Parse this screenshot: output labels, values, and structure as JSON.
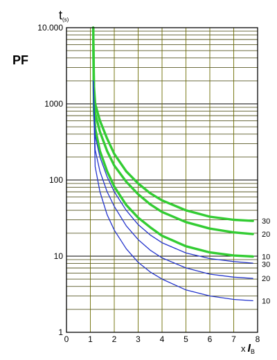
{
  "chart_data": {
    "type": "line",
    "title": "PF",
    "ylabel": "t",
    "ylabel_sub": "(s)",
    "xlabel_prefix": "x",
    "xlabel_var": "I",
    "xlabel_sub": "B",
    "y_scale": "log",
    "ylim": [
      1,
      10000
    ],
    "xlim": [
      0,
      8
    ],
    "x_ticks": [
      "0",
      "1",
      "2",
      "3",
      "4",
      "5",
      "6",
      "7",
      "8"
    ],
    "y_ticks": [
      {
        "value": 1,
        "label": "1"
      },
      {
        "value": 10,
        "label": "10"
      },
      {
        "value": 100,
        "label": "100"
      },
      {
        "value": 1000,
        "label": "1000"
      },
      {
        "value": 10000,
        "label": "10.000"
      }
    ],
    "grid": true,
    "series": [
      {
        "label": "30",
        "color": "#33cc33",
        "group": "green",
        "points": [
          [
            1.12,
            10000
          ],
          [
            1.15,
            1700
          ],
          [
            1.2,
            1000
          ],
          [
            1.4,
            600
          ],
          [
            1.7,
            350
          ],
          [
            2,
            220
          ],
          [
            2.5,
            130
          ],
          [
            3,
            90
          ],
          [
            3.5,
            67
          ],
          [
            4,
            54
          ],
          [
            5,
            40
          ],
          [
            6,
            33
          ],
          [
            7,
            30
          ],
          [
            7.8,
            29
          ]
        ]
      },
      {
        "label": "20",
        "color": "#33cc33",
        "group": "green",
        "points": [
          [
            1.12,
            10000
          ],
          [
            1.15,
            1200
          ],
          [
            1.2,
            750
          ],
          [
            1.4,
            430
          ],
          [
            1.7,
            240
          ],
          [
            2,
            155
          ],
          [
            2.5,
            95
          ],
          [
            3,
            65
          ],
          [
            3.5,
            48
          ],
          [
            4,
            38
          ],
          [
            5,
            28
          ],
          [
            6,
            23
          ],
          [
            7,
            20.5
          ],
          [
            7.8,
            19.5
          ]
        ]
      },
      {
        "label": "10",
        "color": "#33cc33",
        "group": "green",
        "points": [
          [
            1.12,
            10000
          ],
          [
            1.15,
            800
          ],
          [
            1.2,
            480
          ],
          [
            1.4,
            240
          ],
          [
            1.7,
            130
          ],
          [
            2,
            82
          ],
          [
            2.5,
            47
          ],
          [
            3,
            32
          ],
          [
            3.5,
            24
          ],
          [
            4,
            18.5
          ],
          [
            5,
            13.5
          ],
          [
            6,
            11.2
          ],
          [
            7,
            10.2
          ],
          [
            7.8,
            9.9
          ]
        ]
      },
      {
        "label": "30",
        "color": "#2233cc",
        "group": "blue",
        "points": [
          [
            1.12,
            2000
          ],
          [
            1.2,
            380
          ],
          [
            1.4,
            200
          ],
          [
            1.7,
            110
          ],
          [
            2,
            70
          ],
          [
            2.5,
            40
          ],
          [
            3,
            26
          ],
          [
            3.5,
            19
          ],
          [
            4,
            15
          ],
          [
            5,
            11
          ],
          [
            6,
            9.3
          ],
          [
            7,
            8.5
          ],
          [
            7.8,
            8.1
          ]
        ]
      },
      {
        "label": "20",
        "color": "#2233cc",
        "group": "blue",
        "points": [
          [
            1.12,
            2000
          ],
          [
            1.2,
            250
          ],
          [
            1.4,
            130
          ],
          [
            1.7,
            70
          ],
          [
            2,
            45
          ],
          [
            2.5,
            25
          ],
          [
            3,
            16.5
          ],
          [
            3.5,
            12
          ],
          [
            4,
            9.5
          ],
          [
            5,
            7
          ],
          [
            6,
            5.8
          ],
          [
            7,
            5.3
          ],
          [
            7.8,
            5.1
          ]
        ]
      },
      {
        "label": "10",
        "color": "#2233cc",
        "group": "blue",
        "points": [
          [
            1.12,
            2000
          ],
          [
            1.2,
            150
          ],
          [
            1.4,
            70
          ],
          [
            1.7,
            35
          ],
          [
            2,
            22
          ],
          [
            2.5,
            12.5
          ],
          [
            3,
            8.3
          ],
          [
            3.5,
            6.2
          ],
          [
            4,
            5
          ],
          [
            5,
            3.6
          ],
          [
            6,
            3
          ],
          [
            7,
            2.7
          ],
          [
            7.8,
            2.6
          ]
        ]
      }
    ]
  }
}
